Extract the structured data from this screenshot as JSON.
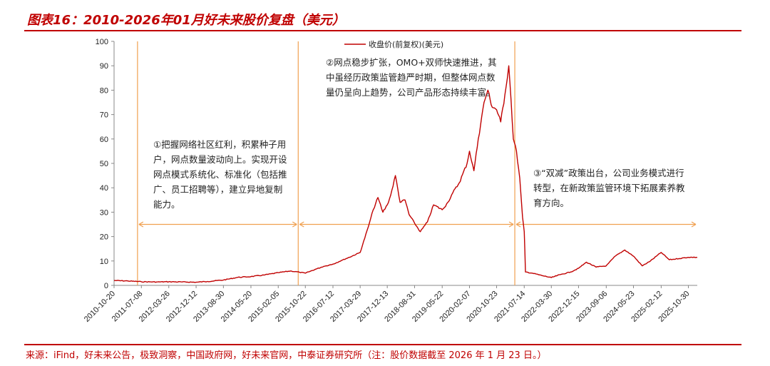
{
  "title": "图表16：2010-2026年01月好未来股价复盘（美元）",
  "source": "来源：iFind，好未来公告，极致洞察，中国政府网，好未来官网，中泰证券研究所（注：股价数据截至 2026 年 1 月 23 日。）",
  "annotations": [
    {
      "id": "phase-1",
      "text": "①把握网络社区红利，积累种子用户，网点数量波动向上。实现开设网点模式系统化、标准化（包括推广、员工招聘等），建立异地复制能力。"
    },
    {
      "id": "phase-2",
      "text": "②网点稳步扩张，OMO+双师快速推进，其中虽经历政策监管趋严时期，但整体网点数量仍呈向上趋势，公司产品形态持续丰富。"
    },
    {
      "id": "phase-3",
      "text": "③“双减”政策出台，公司业务模式进行转型，在新政策监管环境下拓展素养教育方向。"
    }
  ],
  "colors": {
    "accent": "#c00000",
    "series": "#c00000",
    "arrow": "#f0a050",
    "axis": "#888888"
  },
  "chart_data": {
    "type": "line",
    "legend": "收盘价(前复权)(美元)",
    "legend_position": "top",
    "grid": false,
    "ylim": [
      0,
      100
    ],
    "yticks": [
      0,
      10,
      20,
      30,
      40,
      50,
      60,
      70,
      80,
      90,
      100
    ],
    "xlim": [
      "2010-10-20",
      "2026-01-23"
    ],
    "xticks": [
      "2010-10-20",
      "2011-07-08",
      "2012-03-26",
      "2012-12-12",
      "2013-08-30",
      "2014-05-20",
      "2015-02-05",
      "2015-10-22",
      "2016-07-12",
      "2017-03-29",
      "2017-12-13",
      "2018-08-31",
      "2019-05-22",
      "2020-02-07",
      "2020-10-23",
      "2021-07-14",
      "2022-03-30",
      "2022-12-15",
      "2023-09-06",
      "2024-05-23",
      "2025-02-12",
      "2025-10-30"
    ],
    "phase_dividers": [
      "2011-06-01",
      "2015-08-15",
      "2021-04-15"
    ],
    "series": [
      {
        "name": "收盘价(前复权)(美元)",
        "points": [
          [
            "2010-10-20",
            2.0
          ],
          [
            "2011-03-01",
            1.8
          ],
          [
            "2011-07-08",
            1.5
          ],
          [
            "2011-12-01",
            1.4
          ],
          [
            "2012-03-26",
            1.5
          ],
          [
            "2012-08-01",
            1.4
          ],
          [
            "2012-12-12",
            1.3
          ],
          [
            "2013-04-01",
            1.6
          ],
          [
            "2013-08-30",
            2.2
          ],
          [
            "2014-01-15",
            3.3
          ],
          [
            "2014-05-20",
            3.6
          ],
          [
            "2014-10-01",
            4.3
          ],
          [
            "2015-02-05",
            5.2
          ],
          [
            "2015-06-01",
            5.9
          ],
          [
            "2015-08-25",
            5.4
          ],
          [
            "2015-10-22",
            5.0
          ],
          [
            "2016-01-20",
            6.5
          ],
          [
            "2016-04-15",
            7.8
          ],
          [
            "2016-07-12",
            8.7
          ],
          [
            "2016-10-01",
            10.2
          ],
          [
            "2016-12-15",
            11.5
          ],
          [
            "2017-03-29",
            13.5
          ],
          [
            "2017-06-15",
            24.0
          ],
          [
            "2017-08-01",
            31.0
          ],
          [
            "2017-09-15",
            36.0
          ],
          [
            "2017-11-01",
            30.0
          ],
          [
            "2017-12-13",
            33.0
          ],
          [
            "2018-01-15",
            37.0
          ],
          [
            "2018-03-01",
            45.0
          ],
          [
            "2018-04-15",
            34.0
          ],
          [
            "2018-06-01",
            35.0
          ],
          [
            "2018-07-10",
            29.0
          ],
          [
            "2018-08-31",
            25.5
          ],
          [
            "2018-10-25",
            22.0
          ],
          [
            "2019-01-01",
            26.0
          ],
          [
            "2019-03-01",
            33.0
          ],
          [
            "2019-05-22",
            31.0
          ],
          [
            "2019-07-15",
            34.0
          ],
          [
            "2019-09-01",
            38.0
          ],
          [
            "2019-11-01",
            42.0
          ],
          [
            "2020-01-15",
            50.0
          ],
          [
            "2020-02-07",
            55.0
          ],
          [
            "2020-03-20",
            47.0
          ],
          [
            "2020-05-01",
            60.0
          ],
          [
            "2020-06-25",
            75.0
          ],
          [
            "2020-08-01",
            80.0
          ],
          [
            "2020-09-01",
            74.0
          ],
          [
            "2020-10-23",
            72.0
          ],
          [
            "2020-12-01",
            67.0
          ],
          [
            "2021-01-10",
            78.0
          ],
          [
            "2021-02-16",
            90.0
          ],
          [
            "2021-03-10",
            76.0
          ],
          [
            "2021-04-01",
            60.0
          ],
          [
            "2021-05-01",
            55.0
          ],
          [
            "2021-06-01",
            44.0
          ],
          [
            "2021-06-28",
            28.0
          ],
          [
            "2021-07-14",
            22.0
          ],
          [
            "2021-07-26",
            5.5
          ],
          [
            "2021-10-01",
            5.0
          ],
          [
            "2022-01-01",
            4.0
          ],
          [
            "2022-03-30",
            3.2
          ],
          [
            "2022-07-01",
            4.5
          ],
          [
            "2022-10-01",
            5.5
          ],
          [
            "2022-12-15",
            7.0
          ],
          [
            "2023-03-01",
            9.5
          ],
          [
            "2023-06-01",
            7.5
          ],
          [
            "2023-09-06",
            8.0
          ],
          [
            "2023-12-01",
            12.0
          ],
          [
            "2024-03-01",
            14.5
          ],
          [
            "2024-05-23",
            12.0
          ],
          [
            "2024-08-15",
            8.0
          ],
          [
            "2024-11-01",
            10.0
          ],
          [
            "2025-02-12",
            13.5
          ],
          [
            "2025-05-01",
            10.5
          ],
          [
            "2025-08-01",
            11.0
          ],
          [
            "2025-10-30",
            11.5
          ],
          [
            "2026-01-23",
            11.5
          ]
        ]
      }
    ]
  }
}
